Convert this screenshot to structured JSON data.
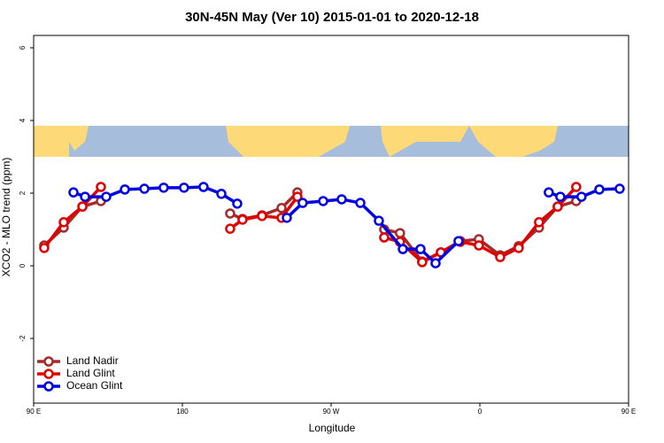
{
  "chart_data": {
    "type": "line",
    "title": "30N-45N May (Ver 10)   2015-01-01 to 2020-12-18",
    "x_label": "Longitude",
    "y_label": "XCO2 - MLO trend (ppm)",
    "xlim": [
      90,
      450
    ],
    "ylim": [
      -3.78,
      6.34
    ],
    "xticks": [
      {
        "value": 90,
        "label": "90 E"
      },
      {
        "value": 180,
        "label": "180"
      },
      {
        "value": 270,
        "label": "90 W"
      },
      {
        "value": 360,
        "label": "0"
      },
      {
        "value": 450,
        "label": "90 E"
      }
    ],
    "yticks": [
      -2,
      0,
      2,
      4,
      6
    ],
    "legend": "bottom-left",
    "series": [
      {
        "name": "Land Nadir",
        "color": "#a52a2a",
        "x": [
          96.4,
          108.2,
          119.5,
          130.7,
          null,
          208.9,
          216.4,
          228.2,
          240,
          249.6,
          null,
          302.1,
          311.7,
          325.1,
          336.4,
          348.2,
          359.4,
          372.3,
          383.5,
          395.8,
          407.1,
          418.3
        ],
        "values": [
          0.56,
          1.05,
          1.63,
          1.78,
          null,
          1.44,
          1.29,
          1.39,
          1.59,
          2.02,
          null,
          1.0,
          0.9,
          0.12,
          0.37,
          0.68,
          0.73,
          0.29,
          0.54,
          1.05,
          1.63,
          1.78
        ]
      },
      {
        "name": "Land Glint",
        "color": "#e00000",
        "x": [
          96.4,
          108.2,
          119.5,
          130.7,
          null,
          208.9,
          216.4,
          228.2,
          240,
          249.6,
          null,
          302.1,
          311.7,
          325.1,
          336.4,
          348.2,
          359.4,
          372.3,
          383.5,
          395.8,
          407.1,
          418.3
        ],
        "values": [
          0.49,
          1.2,
          1.63,
          2.17,
          null,
          1.02,
          1.27,
          1.37,
          1.32,
          1.9,
          null,
          0.78,
          0.66,
          0.1,
          0.37,
          0.66,
          0.56,
          0.24,
          0.49,
          1.2,
          1.63,
          2.17
        ]
      },
      {
        "name": "Ocean Glint",
        "color": "#0000e0",
        "x": [
          114.1,
          121.1,
          133.9,
          145.2,
          157,
          168.7,
          181,
          192.8,
          203.6,
          213.2,
          null,
          243.2,
          252.8,
          265.2,
          276.4,
          287.7,
          298.9,
          313.4,
          324.1,
          333.2,
          347.1,
          null,
          401.7,
          408.7,
          421.5,
          432.3,
          444.6
        ],
        "values": [
          2.02,
          1.9,
          1.9,
          2.1,
          2.12,
          2.15,
          2.15,
          2.17,
          1.98,
          1.71,
          null,
          1.32,
          1.73,
          1.78,
          1.83,
          1.73,
          1.24,
          0.46,
          0.46,
          0.07,
          0.68,
          null,
          2.02,
          1.9,
          1.9,
          2.1,
          2.12
        ]
      }
    ]
  }
}
